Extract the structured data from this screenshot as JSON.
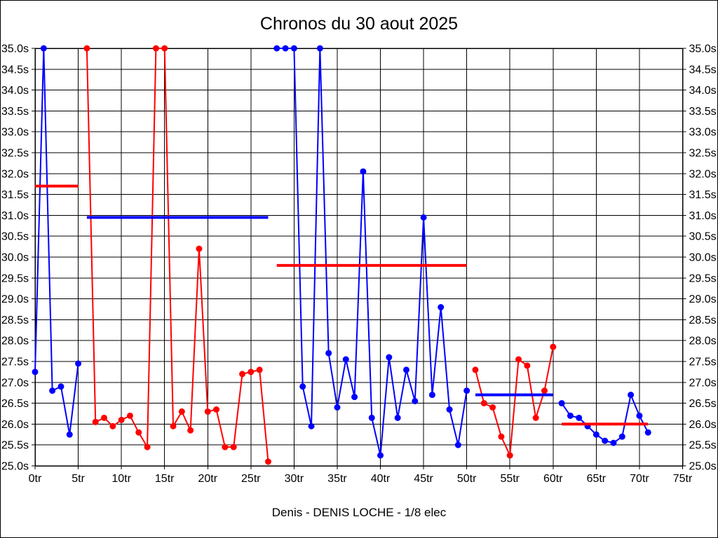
{
  "window": {
    "title": "Chronos du 30 aout 2025",
    "caption": "Denis - DENIS LOCHE - 1/8 elec"
  },
  "chart_data": {
    "type": "line",
    "title": "Chronos du 30 aout 2025",
    "caption": "Denis - DENIS LOCHE - 1/8 elec",
    "xlabel": "",
    "ylabel": "",
    "x_unit": "tr",
    "y_unit": "s",
    "xlim": [
      0,
      75
    ],
    "ylim": [
      25.0,
      35.0
    ],
    "x_tick_step": 5,
    "y_tick_step": 0.5,
    "grid": true,
    "legend": "none",
    "y_labels_both_sides": true,
    "clip_value": 35.0,
    "x_tick_labels": [
      "0tr",
      "5tr",
      "10tr",
      "15tr",
      "20tr",
      "25tr",
      "30tr",
      "35tr",
      "40tr",
      "45tr",
      "50tr",
      "55tr",
      "60tr",
      "65tr",
      "70tr",
      "75tr"
    ],
    "y_tick_labels": [
      "35.0s",
      "34.5s",
      "34.0s",
      "33.5s",
      "33.0s",
      "32.5s",
      "32.0s",
      "31.5s",
      "31.0s",
      "30.5s",
      "30.0s",
      "29.5s",
      "29.0s",
      "28.5s",
      "28.0s",
      "27.5s",
      "27.0s",
      "26.5s",
      "26.0s",
      "25.5s",
      "25.0s"
    ],
    "colors": {
      "red": "#ff0000",
      "blue": "#0000ff",
      "grid": "#000000",
      "text": "#000000",
      "background": "#ffffff"
    },
    "series": [
      {
        "name": "stint-1-blue",
        "color": "blue",
        "start_lap": 0,
        "values": [
          27.25,
          35.0,
          26.8,
          26.9,
          25.75,
          27.45
        ]
      },
      {
        "name": "stint-2-red",
        "color": "red",
        "start_lap": 6,
        "values": [
          35.0,
          26.05,
          26.15,
          25.95,
          26.1,
          26.2,
          25.8,
          25.45,
          35.0,
          35.0,
          25.95,
          26.3,
          25.85,
          30.2,
          26.3,
          26.35,
          25.45,
          25.45,
          27.2,
          27.25,
          27.3,
          25.1
        ]
      },
      {
        "name": "stint-3-blue",
        "color": "blue",
        "start_lap": 28,
        "values": [
          35.0,
          35.0,
          35.0,
          26.9,
          25.95,
          35.0,
          27.7,
          26.4,
          27.55,
          26.65,
          32.05,
          26.15,
          25.25,
          27.6,
          26.15,
          27.3,
          26.55,
          30.95,
          26.7,
          28.8,
          26.35,
          25.5,
          26.8
        ]
      },
      {
        "name": "stint-4-red",
        "color": "red",
        "start_lap": 51,
        "values": [
          27.3,
          26.5,
          26.4,
          25.7,
          25.25,
          27.55,
          27.4,
          26.15,
          26.8,
          27.85
        ]
      },
      {
        "name": "stint-5-blue",
        "color": "blue",
        "start_lap": 61,
        "values": [
          26.5,
          26.2,
          26.15,
          25.95,
          25.75,
          25.6,
          25.55,
          25.7,
          26.7,
          26.2,
          25.8
        ]
      }
    ],
    "average_lines": [
      {
        "color": "red",
        "from_lap": 0,
        "to_lap": 5,
        "value": 31.7
      },
      {
        "color": "blue",
        "from_lap": 6,
        "to_lap": 27,
        "value": 30.95
      },
      {
        "color": "red",
        "from_lap": 28,
        "to_lap": 50,
        "value": 29.8
      },
      {
        "color": "blue",
        "from_lap": 51,
        "to_lap": 60,
        "value": 26.7
      },
      {
        "color": "red",
        "from_lap": 61,
        "to_lap": 71,
        "value": 26.0
      }
    ]
  }
}
